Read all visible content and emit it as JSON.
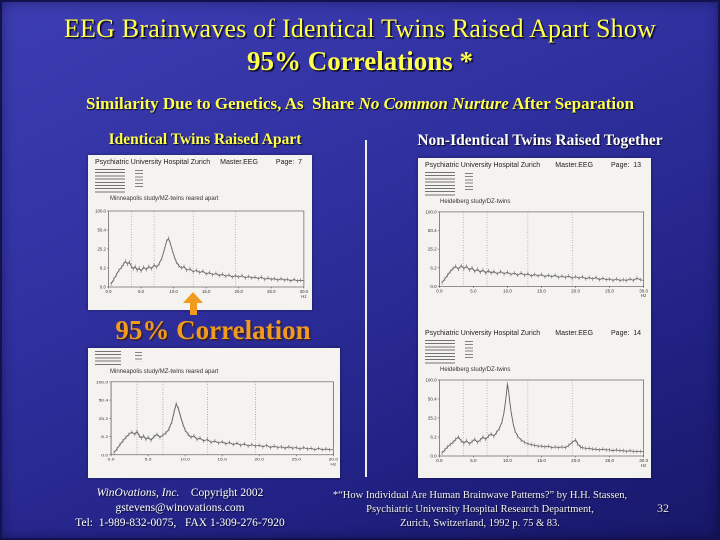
{
  "slide": {
    "title_line1": "EEG Brainwaves of Identical Twins Raised Apart Show",
    "title_line2": "95% Correlations *",
    "subtitle_prefix": "Similarity Due to Genetics, As  Share ",
    "subtitle_emphasis": "No Common Nurture",
    "subtitle_suffix": " After Separation",
    "left_column_header": "Identical Twins Raised Apart",
    "right_column_header": "Non-Identical Twins Raised Together",
    "correlation_label": "95% Correlation",
    "page_number": "32"
  },
  "footer": {
    "company": "WinOvations, Inc.",
    "copyright": "    Copyright 2002",
    "email": "gstevens@winovations.com",
    "phone": "Tel:  1-989-832-0075,   FAX 1-309-276-7920",
    "citation_line1": "*“How Individual Are Human Brainwave Patterns?”  by H.H. Stassen,",
    "citation_line2": "Psychiatric University Hospital Research Department,",
    "citation_line3": "Zurich, Switzerland, 1992 p. 75 & 83."
  },
  "colors": {
    "background_blue": "#2B2B96",
    "title_yellow": "#FFFF4D",
    "accent_orange": "#F09A1E",
    "header_white": "#FFFFFF",
    "panel_paper": "#F4F3EF"
  },
  "eeg_pages": [
    {
      "hospital": "Psychiatric University Hospital Zurich",
      "file": "Master.EEG",
      "page_label": "Page:",
      "page_num": "7",
      "chart_title": "Minneapolis study/MZ-twins reared apart"
    },
    {
      "chart_title": "Minneapolis study/MZ-twins reared apart"
    },
    {
      "hospital": "Psychiatric University Hospital Zurich",
      "file": "Master.EEG",
      "page_label": "Page:",
      "page_num": "13",
      "chart_title": "Heidelberg study/DZ-twins"
    },
    {
      "hospital": "Psychiatric University Hospital Zurich",
      "file": "Master.EEG",
      "page_label": "Page:",
      "page_num": "14",
      "chart_title": "Heidelberg study/DZ-twins"
    }
  ],
  "chart_data": [
    {
      "type": "line",
      "title": "Minneapolis study/MZ-twins reared apart",
      "xlabel": "Hz",
      "x_unit": "Hz",
      "xlim": [
        0,
        30
      ],
      "x_ticks": [
        "0.0",
        "5.0",
        "10.0",
        "15.0",
        "20.0",
        "25.0",
        "30.0"
      ],
      "y_ticks": [
        "100.0",
        "50.4",
        "25.2",
        "6.2",
        "0.0"
      ],
      "band_boundaries_hz": [
        3.5,
        7,
        13,
        19.5
      ],
      "grid": "dotted-vertical",
      "points": [
        [
          0.4,
          4
        ],
        [
          0.8,
          10
        ],
        [
          1.2,
          16
        ],
        [
          1.6,
          22
        ],
        [
          2.0,
          26
        ],
        [
          2.3,
          30
        ],
        [
          2.6,
          34
        ],
        [
          2.9,
          30
        ],
        [
          3.2,
          33
        ],
        [
          3.5,
          27
        ],
        [
          3.8,
          24
        ],
        [
          4.1,
          27
        ],
        [
          4.4,
          22
        ],
        [
          4.7,
          25
        ],
        [
          5.0,
          21
        ],
        [
          5.4,
          26
        ],
        [
          5.8,
          23
        ],
        [
          6.2,
          27
        ],
        [
          6.6,
          24
        ],
        [
          7.0,
          29
        ],
        [
          7.4,
          26
        ],
        [
          7.8,
          31
        ],
        [
          8.2,
          38
        ],
        [
          8.6,
          50
        ],
        [
          8.9,
          60
        ],
        [
          9.2,
          64
        ],
        [
          9.5,
          57
        ],
        [
          9.8,
          48
        ],
        [
          10.1,
          40
        ],
        [
          10.4,
          33
        ],
        [
          10.8,
          28
        ],
        [
          11.2,
          25
        ],
        [
          11.6,
          27
        ],
        [
          12.0,
          22
        ],
        [
          12.5,
          24
        ],
        [
          13.0,
          20
        ],
        [
          13.5,
          22
        ],
        [
          14.0,
          19
        ],
        [
          14.5,
          21
        ],
        [
          15.0,
          17
        ],
        [
          15.5,
          19
        ],
        [
          16.0,
          16
        ],
        [
          16.5,
          18
        ],
        [
          17.0,
          15
        ],
        [
          17.5,
          17
        ],
        [
          18.0,
          14
        ],
        [
          18.5,
          16
        ],
        [
          19.0,
          13
        ],
        [
          19.5,
          15
        ],
        [
          20.0,
          13
        ],
        [
          20.5,
          15
        ],
        [
          21.0,
          12
        ],
        [
          21.5,
          14
        ],
        [
          22.0,
          12
        ],
        [
          22.5,
          13
        ],
        [
          23.0,
          11
        ],
        [
          23.5,
          13
        ],
        [
          24.0,
          10
        ],
        [
          24.5,
          12
        ],
        [
          25.0,
          10
        ],
        [
          25.5,
          11
        ],
        [
          26.0,
          9
        ],
        [
          26.5,
          11
        ],
        [
          27.0,
          9
        ],
        [
          27.5,
          10
        ],
        [
          28.0,
          8
        ],
        [
          28.5,
          10
        ],
        [
          29.0,
          8
        ],
        [
          29.5,
          9
        ],
        [
          30.0,
          8
        ]
      ]
    },
    {
      "type": "line",
      "title": "Minneapolis study/MZ-twins reared apart",
      "xlabel": "Hz",
      "x_unit": "Hz",
      "xlim": [
        0,
        30
      ],
      "x_ticks": [
        "0.0",
        "5.0",
        "10.0",
        "15.0",
        "20.0",
        "25.0",
        "30.0"
      ],
      "y_ticks": [
        "100.0",
        "50.4",
        "25.2",
        "6.2",
        "0.0"
      ],
      "band_boundaries_hz": [
        3.5,
        7,
        13,
        19.5
      ],
      "grid": "dotted-vertical",
      "points": [
        [
          0.4,
          3
        ],
        [
          0.8,
          8
        ],
        [
          1.2,
          14
        ],
        [
          1.6,
          19
        ],
        [
          2.0,
          24
        ],
        [
          2.4,
          28
        ],
        [
          2.8,
          31
        ],
        [
          3.2,
          28
        ],
        [
          3.5,
          32
        ],
        [
          3.8,
          26
        ],
        [
          4.1,
          23
        ],
        [
          4.4,
          26
        ],
        [
          4.7,
          21
        ],
        [
          5.0,
          24
        ],
        [
          5.4,
          20
        ],
        [
          5.8,
          25
        ],
        [
          6.2,
          28
        ],
        [
          6.6,
          24
        ],
        [
          7.0,
          27
        ],
        [
          7.4,
          30
        ],
        [
          7.8,
          35
        ],
        [
          8.2,
          45
        ],
        [
          8.5,
          58
        ],
        [
          8.8,
          70
        ],
        [
          9.1,
          63
        ],
        [
          9.4,
          52
        ],
        [
          9.7,
          42
        ],
        [
          10.0,
          34
        ],
        [
          10.4,
          28
        ],
        [
          10.8,
          24
        ],
        [
          11.2,
          26
        ],
        [
          11.6,
          21
        ],
        [
          12.0,
          23
        ],
        [
          12.5,
          19
        ],
        [
          13.0,
          21
        ],
        [
          13.5,
          17
        ],
        [
          14.0,
          19
        ],
        [
          14.5,
          16
        ],
        [
          15.0,
          18
        ],
        [
          15.5,
          15
        ],
        [
          16.0,
          17
        ],
        [
          16.5,
          14
        ],
        [
          17.0,
          16
        ],
        [
          17.5,
          13
        ],
        [
          18.0,
          15
        ],
        [
          18.5,
          12
        ],
        [
          19.0,
          14
        ],
        [
          19.5,
          12
        ],
        [
          20.0,
          13
        ],
        [
          20.5,
          11
        ],
        [
          21.0,
          13
        ],
        [
          21.5,
          10
        ],
        [
          22.0,
          12
        ],
        [
          22.5,
          10
        ],
        [
          23.0,
          11
        ],
        [
          23.5,
          9
        ],
        [
          24.0,
          11
        ],
        [
          24.5,
          9
        ],
        [
          25.0,
          10
        ],
        [
          25.5,
          8
        ],
        [
          26.0,
          10
        ],
        [
          26.5,
          8
        ],
        [
          27.0,
          9
        ],
        [
          27.5,
          7
        ],
        [
          28.0,
          9
        ],
        [
          28.5,
          7
        ],
        [
          29.0,
          8
        ],
        [
          29.5,
          7
        ],
        [
          30.0,
          7
        ]
      ]
    },
    {
      "type": "line",
      "title": "Heidelberg study/DZ-twins",
      "xlabel": "Hz",
      "x_unit": "Hz",
      "xlim": [
        0,
        30
      ],
      "x_ticks": [
        "0.0",
        "5.0",
        "10.0",
        "15.0",
        "20.0",
        "25.0",
        "30.0"
      ],
      "y_ticks": [
        "100.0",
        "50.4",
        "25.2",
        "6.2",
        "0.0"
      ],
      "band_boundaries_hz": [
        3.5,
        7,
        13,
        19.5
      ],
      "grid": "dotted-vertical",
      "points": [
        [
          0.4,
          5
        ],
        [
          0.8,
          10
        ],
        [
          1.2,
          15
        ],
        [
          1.6,
          20
        ],
        [
          2.0,
          24
        ],
        [
          2.4,
          27
        ],
        [
          2.8,
          23
        ],
        [
          3.2,
          28
        ],
        [
          3.6,
          24
        ],
        [
          4.0,
          27
        ],
        [
          4.4,
          22
        ],
        [
          4.8,
          25
        ],
        [
          5.2,
          20
        ],
        [
          5.6,
          23
        ],
        [
          6.0,
          19
        ],
        [
          6.4,
          22
        ],
        [
          6.8,
          18
        ],
        [
          7.2,
          21
        ],
        [
          7.6,
          18
        ],
        [
          8.0,
          20
        ],
        [
          8.5,
          17
        ],
        [
          9.0,
          20
        ],
        [
          9.5,
          17
        ],
        [
          10.0,
          19
        ],
        [
          10.5,
          16
        ],
        [
          11.0,
          18
        ],
        [
          11.5,
          15
        ],
        [
          12.0,
          18
        ],
        [
          12.5,
          15
        ],
        [
          13.0,
          17
        ],
        [
          13.5,
          14
        ],
        [
          14.0,
          16
        ],
        [
          14.5,
          14
        ],
        [
          15.0,
          16
        ],
        [
          15.5,
          13
        ],
        [
          16.0,
          15
        ],
        [
          16.5,
          13
        ],
        [
          17.0,
          15
        ],
        [
          17.5,
          12
        ],
        [
          18.0,
          14
        ],
        [
          18.5,
          12
        ],
        [
          19.0,
          14
        ],
        [
          19.5,
          11
        ],
        [
          20.0,
          13
        ],
        [
          20.5,
          11
        ],
        [
          21.0,
          13
        ],
        [
          21.5,
          10
        ],
        [
          22.0,
          12
        ],
        [
          22.5,
          10
        ],
        [
          23.0,
          12
        ],
        [
          23.5,
          9
        ],
        [
          24.0,
          11
        ],
        [
          24.5,
          9
        ],
        [
          25.0,
          10
        ],
        [
          25.5,
          8
        ],
        [
          26.0,
          10
        ],
        [
          26.5,
          8
        ],
        [
          27.0,
          9
        ],
        [
          27.5,
          8
        ],
        [
          28.0,
          10
        ],
        [
          28.5,
          8
        ],
        [
          29.0,
          11
        ],
        [
          29.5,
          9
        ],
        [
          30.0,
          8
        ]
      ]
    },
    {
      "type": "line",
      "title": "Heidelberg study/DZ-twins",
      "xlabel": "Hz",
      "x_unit": "Hz",
      "xlim": [
        0,
        30
      ],
      "x_ticks": [
        "0.0",
        "5.0",
        "10.0",
        "15.0",
        "20.0",
        "25.0",
        "30.0"
      ],
      "y_ticks": [
        "100.0",
        "50.4",
        "25.2",
        "6.2",
        "0.0"
      ],
      "band_boundaries_hz": [
        3.5,
        7,
        13,
        19.5
      ],
      "grid": "dotted-vertical",
      "points": [
        [
          0.4,
          4
        ],
        [
          0.8,
          8
        ],
        [
          1.2,
          12
        ],
        [
          1.6,
          15
        ],
        [
          2.0,
          18
        ],
        [
          2.4,
          22
        ],
        [
          2.8,
          25
        ],
        [
          3.2,
          20
        ],
        [
          3.6,
          17
        ],
        [
          4.0,
          20
        ],
        [
          4.4,
          16
        ],
        [
          4.8,
          19
        ],
        [
          5.2,
          22
        ],
        [
          5.6,
          18
        ],
        [
          6.0,
          21
        ],
        [
          6.4,
          25
        ],
        [
          6.8,
          22
        ],
        [
          7.2,
          26
        ],
        [
          7.6,
          29
        ],
        [
          8.0,
          26
        ],
        [
          8.4,
          31
        ],
        [
          8.8,
          36
        ],
        [
          9.2,
          45
        ],
        [
          9.5,
          58
        ],
        [
          9.8,
          78
        ],
        [
          10.0,
          95
        ],
        [
          10.2,
          82
        ],
        [
          10.5,
          60
        ],
        [
          10.8,
          44
        ],
        [
          11.1,
          33
        ],
        [
          11.5,
          26
        ],
        [
          12.0,
          21
        ],
        [
          12.5,
          18
        ],
        [
          13.0,
          16
        ],
        [
          13.5,
          15
        ],
        [
          14.0,
          14
        ],
        [
          14.5,
          13
        ],
        [
          15.0,
          13
        ],
        [
          15.5,
          12
        ],
        [
          16.0,
          13
        ],
        [
          16.5,
          11
        ],
        [
          17.0,
          12
        ],
        [
          17.5,
          11
        ],
        [
          18.0,
          12
        ],
        [
          18.5,
          11
        ],
        [
          19.0,
          14
        ],
        [
          19.5,
          18
        ],
        [
          20.0,
          21
        ],
        [
          20.3,
          16
        ],
        [
          20.7,
          12
        ],
        [
          21.0,
          11
        ],
        [
          21.5,
          10
        ],
        [
          22.0,
          10
        ],
        [
          22.5,
          9
        ],
        [
          23.0,
          9
        ],
        [
          23.5,
          8
        ],
        [
          24.0,
          9
        ],
        [
          24.5,
          8
        ],
        [
          25.0,
          8
        ],
        [
          25.5,
          7
        ],
        [
          26.0,
          8
        ],
        [
          26.5,
          7
        ],
        [
          27.0,
          7
        ],
        [
          27.5,
          6
        ],
        [
          28.0,
          7
        ],
        [
          28.5,
          6
        ],
        [
          29.0,
          6
        ],
        [
          29.5,
          6
        ],
        [
          30.0,
          6
        ]
      ]
    }
  ]
}
